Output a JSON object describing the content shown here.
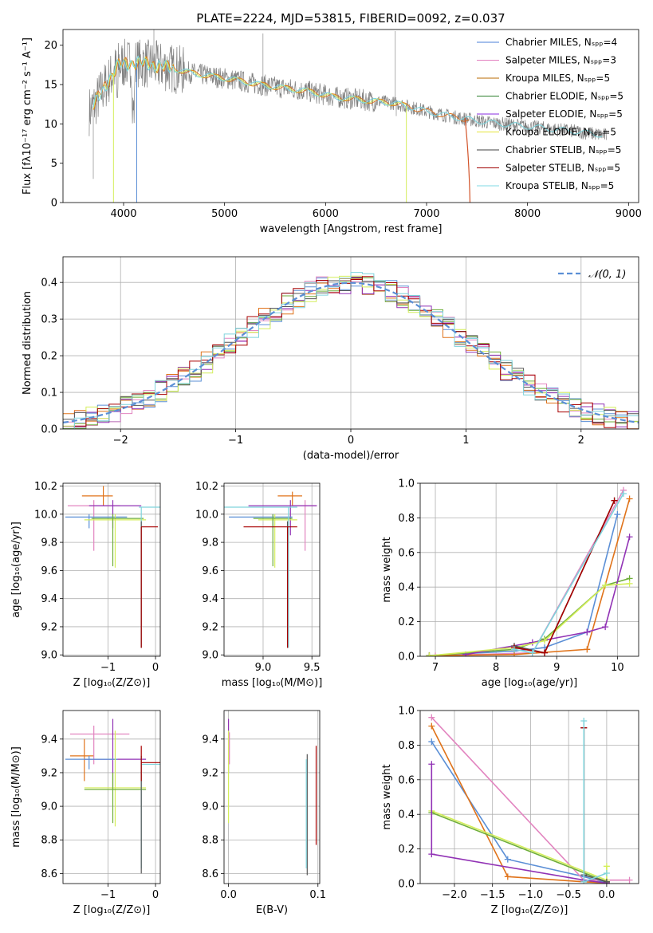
{
  "chart_data": [
    {
      "type": "line",
      "id": "spectrum",
      "title": "PLATE=2224, MJD=53815, FIBERID=0092, z=0.037",
      "xlabel": "wavelength [Angstrom, rest frame]",
      "ylabel": "Flux [fλ10⁻¹⁷ erg cm⁻² s⁻¹ A⁻¹]",
      "xlim": [
        3400,
        9100
      ],
      "ylim": [
        0,
        22
      ],
      "xticks": [
        "4000",
        "5000",
        "6000",
        "7000",
        "8000",
        "9000"
      ],
      "yticks": [
        "0",
        "5",
        "10",
        "15",
        "20"
      ],
      "grid": false,
      "legend_position": "top-right",
      "legend": [
        {
          "label": "Chabrier MILES, Nₛₚₚ=4",
          "color": "#4a7fd8"
        },
        {
          "label": "Salpeter MILES, Nₛₚₚ=3",
          "color": "#e27fbf"
        },
        {
          "label": "Kroupa MILES, Nₛₚₚ=5",
          "color": "#b96a00"
        },
        {
          "label": "Chabrier ELODIE, Nₛₚₚ=5",
          "color": "#2c7f2c"
        },
        {
          "label": "Salpeter ELODIE, Nₛₚₚ=5",
          "color": "#8a2be2"
        },
        {
          "label": "Kroupa ELODIE, Nₛₚₚ=5",
          "color": "#e6e63a"
        },
        {
          "label": "Chabrier STELIB, Nₛₚₚ=5",
          "color": "#404040"
        },
        {
          "label": "Salpeter STELIB, Nₛₚₚ=5",
          "color": "#a00000"
        },
        {
          "label": "Kroupa STELIB, Nₛₚₚ=5",
          "color": "#7fd8e6"
        }
      ],
      "continuum": {
        "x": [
          3650,
          3700,
          3800,
          3950,
          4100,
          4300,
          4500,
          4700,
          4900,
          5100,
          5300,
          5500,
          5800,
          6100,
          6400,
          6700,
          7000,
          7300,
          7600,
          7900,
          8200,
          8500,
          8800
        ],
        "y": [
          11.5,
          12.2,
          14.5,
          17.5,
          17.8,
          17.5,
          17.0,
          16.4,
          16.0,
          15.6,
          15.1,
          14.7,
          14.2,
          13.4,
          13.0,
          12.6,
          11.6,
          10.8,
          10.2,
          9.8,
          9.4,
          9.0,
          8.5
        ]
      }
    },
    {
      "type": "line",
      "id": "residuals",
      "xlabel": "(data-model)/error",
      "ylabel": "Normed distribution",
      "xlim": [
        -2.5,
        2.5
      ],
      "ylim": [
        0,
        0.47
      ],
      "xticks": [
        "−2",
        "−1",
        "0",
        "1",
        "2"
      ],
      "yticks": [
        "0.0",
        "0.1",
        "0.2",
        "0.3",
        "0.4"
      ],
      "grid": true,
      "legend_position": "top-right",
      "legend": [
        {
          "label": "𝒩(0, 1)",
          "color": "#5b8fd6"
        }
      ]
    },
    {
      "type": "scatter",
      "id": "age-vs-Z",
      "xlabel": "Z [log₁₀(Z/Z⊙)]",
      "ylabel": "age  [log₁₀(age/yr)]",
      "xlim": [
        -1.95,
        0.1
      ],
      "ylim": [
        8.99,
        10.22
      ],
      "xticks": [
        "−1",
        "0"
      ],
      "yticks": [
        "9.0",
        "9.2",
        "9.4",
        "9.6",
        "9.8",
        "10.0",
        "10.2"
      ],
      "grid": true
    },
    {
      "type": "scatter",
      "id": "age-vs-mass",
      "xlabel": "mass [log₁₀(M/M⊙)]",
      "xlim": [
        8.6,
        9.58
      ],
      "ylim": [
        8.99,
        10.22
      ],
      "xticks": [
        "9.0",
        "9.5"
      ],
      "yticks": [
        "9.0",
        "9.2",
        "9.4",
        "9.6",
        "9.8",
        "10.0",
        "10.2"
      ],
      "grid": true
    },
    {
      "type": "line",
      "id": "weight-vs-age",
      "xlabel": "age  [log₁₀(age/yr)]",
      "ylabel": "mass weight",
      "xlim": [
        6.75,
        10.35
      ],
      "ylim": [
        0,
        1
      ],
      "xticks": [
        "7",
        "8",
        "9",
        "10"
      ],
      "yticks": [
        "0.0",
        "0.2",
        "0.4",
        "0.6",
        "0.8",
        "1.0"
      ],
      "grid": true
    },
    {
      "type": "scatter",
      "id": "mass-vs-Z",
      "xlabel": "Z [log₁₀(Z/Z⊙)]",
      "ylabel": "mass [log₁₀(M/M⊙)]",
      "xlim": [
        -1.95,
        0.1
      ],
      "ylim": [
        8.54,
        9.57
      ],
      "xticks": [
        "−1",
        "0"
      ],
      "yticks": [
        "8.6",
        "8.8",
        "9.0",
        "9.2",
        "9.4"
      ],
      "grid": true
    },
    {
      "type": "scatter",
      "id": "mass-vs-ebv",
      "xlabel": "E(B-V)",
      "xlim": [
        -0.005,
        0.102
      ],
      "ylim": [
        8.54,
        9.57
      ],
      "xticks": [
        "0.0",
        "0.1"
      ],
      "yticks": [
        "8.6",
        "8.8",
        "9.0",
        "9.2",
        "9.4"
      ],
      "grid": true
    },
    {
      "type": "line",
      "id": "weight-vs-Z",
      "xlabel": "Z [log₁₀(Z/Z⊙)]",
      "ylabel": "mass weight",
      "xlim": [
        -2.45,
        0.42
      ],
      "ylim": [
        0,
        1
      ],
      "xticks": [
        "−2.0",
        "−1.5",
        "−1.0",
        "−0.5",
        "0.0"
      ],
      "yticks": [
        "0.0",
        "0.2",
        "0.4",
        "0.6",
        "0.8",
        "1.0"
      ],
      "grid": true
    }
  ],
  "colors": {
    "chabrier_miles": "#5b8fd6",
    "salpeter_miles": "#e285c0",
    "kroupa_miles": "#e0731a",
    "chabrier_elodie": "#6fae3a",
    "salpeter_elodie": "#9132b5",
    "kroupa_elodie": "#d4ee5a",
    "chabrier_stelib": "#555555",
    "salpeter_stelib": "#a80000",
    "kroupa_stelib": "#7fd4dc",
    "observed": "#808080"
  }
}
